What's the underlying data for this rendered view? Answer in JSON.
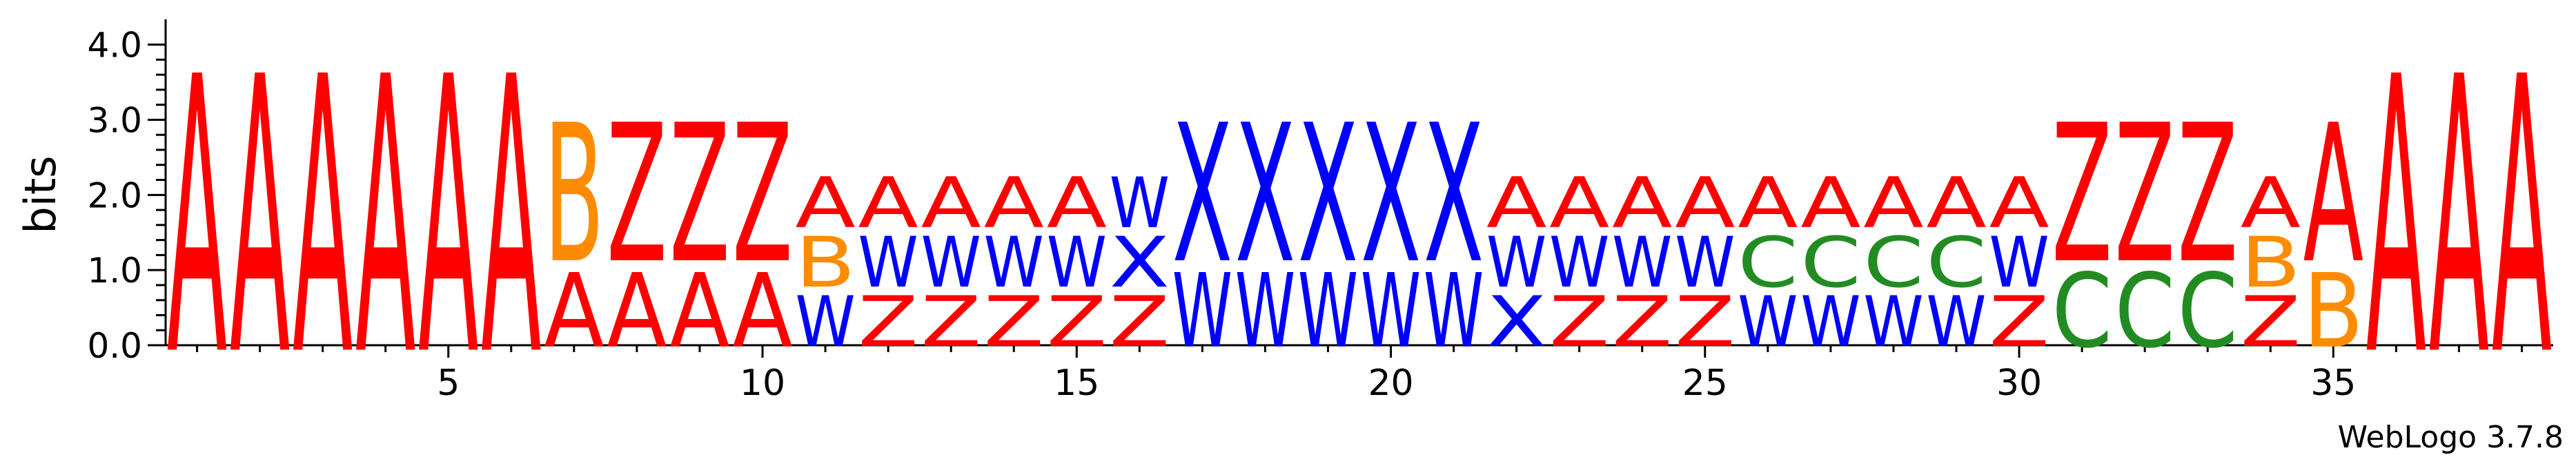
{
  "chart_data": {
    "type": "sequence-logo",
    "ylabel": "bits",
    "ylim": [
      0,
      4.3
    ],
    "y_ticks": [
      "0.0",
      "1.0",
      "2.0",
      "3.0",
      "4.0"
    ],
    "x_ticks": [
      5,
      10,
      15,
      20,
      25,
      30,
      35
    ],
    "colors": {
      "A": "#ff0000",
      "Z": "#ff0000",
      "W": "#0000ff",
      "X": "#0000ff",
      "B": "#ff8c00",
      "C": "#228b22"
    },
    "positions": [
      {
        "pos": 1,
        "stack": [
          {
            "letter": "A",
            "bits": 4.32
          }
        ]
      },
      {
        "pos": 2,
        "stack": [
          {
            "letter": "A",
            "bits": 4.32
          }
        ]
      },
      {
        "pos": 3,
        "stack": [
          {
            "letter": "A",
            "bits": 4.32
          }
        ]
      },
      {
        "pos": 4,
        "stack": [
          {
            "letter": "A",
            "bits": 4.32
          }
        ]
      },
      {
        "pos": 5,
        "stack": [
          {
            "letter": "A",
            "bits": 4.32
          }
        ]
      },
      {
        "pos": 6,
        "stack": [
          {
            "letter": "A",
            "bits": 4.32
          }
        ]
      },
      {
        "pos": 7,
        "stack": [
          {
            "letter": "A",
            "bits": 1.16
          },
          {
            "letter": "B",
            "bits": 2.16
          }
        ]
      },
      {
        "pos": 8,
        "stack": [
          {
            "letter": "A",
            "bits": 1.16
          },
          {
            "letter": "Z",
            "bits": 2.16
          }
        ]
      },
      {
        "pos": 9,
        "stack": [
          {
            "letter": "A",
            "bits": 1.16
          },
          {
            "letter": "Z",
            "bits": 2.16
          }
        ]
      },
      {
        "pos": 10,
        "stack": [
          {
            "letter": "A",
            "bits": 1.16
          },
          {
            "letter": "Z",
            "bits": 2.16
          }
        ]
      },
      {
        "pos": 11,
        "stack": [
          {
            "letter": "W",
            "bits": 0.79
          },
          {
            "letter": "B",
            "bits": 0.79
          },
          {
            "letter": "A",
            "bits": 0.79
          }
        ]
      },
      {
        "pos": 12,
        "stack": [
          {
            "letter": "Z",
            "bits": 0.79
          },
          {
            "letter": "W",
            "bits": 0.79
          },
          {
            "letter": "A",
            "bits": 0.79
          }
        ]
      },
      {
        "pos": 13,
        "stack": [
          {
            "letter": "Z",
            "bits": 0.79
          },
          {
            "letter": "W",
            "bits": 0.79
          },
          {
            "letter": "A",
            "bits": 0.79
          }
        ]
      },
      {
        "pos": 14,
        "stack": [
          {
            "letter": "Z",
            "bits": 0.79
          },
          {
            "letter": "W",
            "bits": 0.79
          },
          {
            "letter": "A",
            "bits": 0.79
          }
        ]
      },
      {
        "pos": 15,
        "stack": [
          {
            "letter": "Z",
            "bits": 0.79
          },
          {
            "letter": "W",
            "bits": 0.79
          },
          {
            "letter": "A",
            "bits": 0.79
          }
        ]
      },
      {
        "pos": 16,
        "stack": [
          {
            "letter": "Z",
            "bits": 0.79
          },
          {
            "letter": "X",
            "bits": 0.79
          },
          {
            "letter": "W",
            "bits": 0.79
          }
        ]
      },
      {
        "pos": 17,
        "stack": [
          {
            "letter": "W",
            "bits": 1.16
          },
          {
            "letter": "X",
            "bits": 2.16
          }
        ]
      },
      {
        "pos": 18,
        "stack": [
          {
            "letter": "W",
            "bits": 1.16
          },
          {
            "letter": "X",
            "bits": 2.16
          }
        ]
      },
      {
        "pos": 19,
        "stack": [
          {
            "letter": "W",
            "bits": 1.16
          },
          {
            "letter": "X",
            "bits": 2.16
          }
        ]
      },
      {
        "pos": 20,
        "stack": [
          {
            "letter": "W",
            "bits": 1.16
          },
          {
            "letter": "X",
            "bits": 2.16
          }
        ]
      },
      {
        "pos": 21,
        "stack": [
          {
            "letter": "W",
            "bits": 1.16
          },
          {
            "letter": "X",
            "bits": 2.16
          }
        ]
      },
      {
        "pos": 22,
        "stack": [
          {
            "letter": "X",
            "bits": 0.79
          },
          {
            "letter": "W",
            "bits": 0.79
          },
          {
            "letter": "A",
            "bits": 0.79
          }
        ]
      },
      {
        "pos": 23,
        "stack": [
          {
            "letter": "Z",
            "bits": 0.79
          },
          {
            "letter": "W",
            "bits": 0.79
          },
          {
            "letter": "A",
            "bits": 0.79
          }
        ]
      },
      {
        "pos": 24,
        "stack": [
          {
            "letter": "Z",
            "bits": 0.79
          },
          {
            "letter": "W",
            "bits": 0.79
          },
          {
            "letter": "A",
            "bits": 0.79
          }
        ]
      },
      {
        "pos": 25,
        "stack": [
          {
            "letter": "Z",
            "bits": 0.79
          },
          {
            "letter": "W",
            "bits": 0.79
          },
          {
            "letter": "A",
            "bits": 0.79
          }
        ]
      },
      {
        "pos": 26,
        "stack": [
          {
            "letter": "W",
            "bits": 0.79
          },
          {
            "letter": "C",
            "bits": 0.79
          },
          {
            "letter": "A",
            "bits": 0.79
          }
        ]
      },
      {
        "pos": 27,
        "stack": [
          {
            "letter": "W",
            "bits": 0.79
          },
          {
            "letter": "C",
            "bits": 0.79
          },
          {
            "letter": "A",
            "bits": 0.79
          }
        ]
      },
      {
        "pos": 28,
        "stack": [
          {
            "letter": "W",
            "bits": 0.79
          },
          {
            "letter": "C",
            "bits": 0.79
          },
          {
            "letter": "A",
            "bits": 0.79
          }
        ]
      },
      {
        "pos": 29,
        "stack": [
          {
            "letter": "W",
            "bits": 0.79
          },
          {
            "letter": "C",
            "bits": 0.79
          },
          {
            "letter": "A",
            "bits": 0.79
          }
        ]
      },
      {
        "pos": 30,
        "stack": [
          {
            "letter": "Z",
            "bits": 0.79
          },
          {
            "letter": "W",
            "bits": 0.79
          },
          {
            "letter": "A",
            "bits": 0.79
          }
        ]
      },
      {
        "pos": 31,
        "stack": [
          {
            "letter": "C",
            "bits": 1.16
          },
          {
            "letter": "Z",
            "bits": 2.16
          }
        ]
      },
      {
        "pos": 32,
        "stack": [
          {
            "letter": "C",
            "bits": 1.16
          },
          {
            "letter": "Z",
            "bits": 2.16
          }
        ]
      },
      {
        "pos": 33,
        "stack": [
          {
            "letter": "C",
            "bits": 1.16
          },
          {
            "letter": "Z",
            "bits": 2.16
          }
        ]
      },
      {
        "pos": 34,
        "stack": [
          {
            "letter": "Z",
            "bits": 0.79
          },
          {
            "letter": "B",
            "bits": 0.79
          },
          {
            "letter": "A",
            "bits": 0.79
          }
        ]
      },
      {
        "pos": 35,
        "stack": [
          {
            "letter": "B",
            "bits": 1.16
          },
          {
            "letter": "A",
            "bits": 2.16
          }
        ]
      },
      {
        "pos": 36,
        "stack": [
          {
            "letter": "A",
            "bits": 4.32
          }
        ]
      },
      {
        "pos": 37,
        "stack": [
          {
            "letter": "A",
            "bits": 4.32
          }
        ]
      },
      {
        "pos": 38,
        "stack": [
          {
            "letter": "A",
            "bits": 4.32
          }
        ]
      }
    ]
  },
  "credit": "WebLogo 3.7.8"
}
